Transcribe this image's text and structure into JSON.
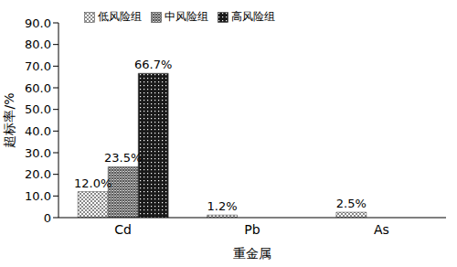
{
  "chart_data": {
    "type": "bar",
    "x_label": "重金属",
    "y_label": "超标率/%",
    "categories": [
      "Cd",
      "Pb",
      "As"
    ],
    "series": [
      {
        "name": "低风险组",
        "color": "#8a8a8a",
        "values": [
          12.0,
          1.2,
          2.5
        ],
        "value_labels": [
          "12.0%",
          "1.2%",
          "2.5%"
        ]
      },
      {
        "name": "中风险组",
        "color": "#555555",
        "values": [
          23.5,
          null,
          null
        ],
        "value_labels": [
          "23.5%",
          null,
          null
        ]
      },
      {
        "name": "高风险组",
        "color": "#1a1a1a",
        "values": [
          66.7,
          null,
          null
        ],
        "value_labels": [
          "66.7%",
          null,
          null
        ]
      }
    ],
    "ylim": [
      0,
      90
    ],
    "yticks": [
      {
        "value": 0,
        "label": "0"
      },
      {
        "value": 10,
        "label": "10.0"
      },
      {
        "value": 20,
        "label": "20.0"
      },
      {
        "value": 30,
        "label": "30.0"
      },
      {
        "value": 40,
        "label": "40.0"
      },
      {
        "value": 50,
        "label": "50.0"
      },
      {
        "value": 60,
        "label": "60.0"
      },
      {
        "value": 70,
        "label": "70.0"
      },
      {
        "value": 80,
        "label": "80.0"
      },
      {
        "value": 90,
        "label": "90.0"
      }
    ],
    "grid": false,
    "legend": "top",
    "data_labels": true
  }
}
